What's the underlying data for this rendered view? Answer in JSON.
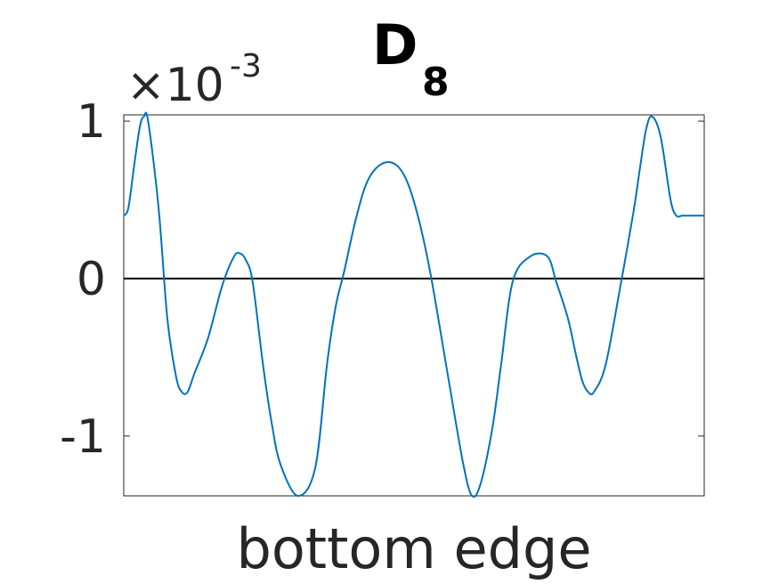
{
  "chart_data": {
    "type": "line",
    "title": "D",
    "title_subscript": "8",
    "xlabel": "bottom edge",
    "ylabel": "",
    "y_exponent_prefix": "×10",
    "y_exponent_power": "-3",
    "x_tick_labels": [],
    "y_ticks": [
      {
        "value": 1,
        "label": "1"
      },
      {
        "value": 0,
        "label": "0"
      },
      {
        "value": -1,
        "label": "-1"
      }
    ],
    "xlim": [
      0,
      1
    ],
    "ylim": [
      -1.38,
      1.04
    ],
    "grid": false,
    "reference_line": {
      "y": 0,
      "color": "#000000"
    },
    "series": [
      {
        "color": "#0072BD",
        "x": [
          0,
          0.008,
          0.018,
          0.028,
          0.035,
          0.042,
          0.06,
          0.075,
          0.09,
          0.1,
          0.11,
          0.122,
          0.145,
          0.17,
          0.19,
          0.2,
          0.21,
          0.222,
          0.24,
          0.255,
          0.27,
          0.3,
          0.33,
          0.35,
          0.365,
          0.38,
          0.4,
          0.42,
          0.445,
          0.47,
          0.49,
          0.51,
          0.53,
          0.56,
          0.585,
          0.6,
          0.615,
          0.635,
          0.65,
          0.67,
          0.7,
          0.73,
          0.745,
          0.765,
          0.78,
          0.79,
          0.8,
          0.81,
          0.83,
          0.855,
          0.878,
          0.89,
          0.9,
          0.91,
          0.925,
          0.942,
          0.952,
          0.962,
          0.972,
          0.982,
          0.992,
          1.0
        ],
        "values": [
          0.4,
          0.45,
          0.72,
          0.97,
          1.03,
          1.0,
          0.45,
          -0.25,
          -0.62,
          -0.72,
          -0.72,
          -0.6,
          -0.38,
          -0.04,
          0.14,
          0.16,
          0.12,
          -0.02,
          -0.55,
          -0.92,
          -1.18,
          -1.38,
          -1.2,
          -0.55,
          -0.18,
          0.05,
          0.38,
          0.62,
          0.73,
          0.72,
          0.6,
          0.35,
          0.0,
          -0.65,
          -1.18,
          -1.38,
          -1.3,
          -0.95,
          -0.55,
          -0.02,
          0.14,
          0.14,
          -0.02,
          -0.25,
          -0.5,
          -0.65,
          -0.72,
          -0.72,
          -0.55,
          -0.06,
          0.42,
          0.72,
          0.95,
          1.03,
          0.9,
          0.5,
          0.4,
          0.4,
          0.4,
          0.4,
          0.4,
          0.4
        ]
      }
    ]
  }
}
